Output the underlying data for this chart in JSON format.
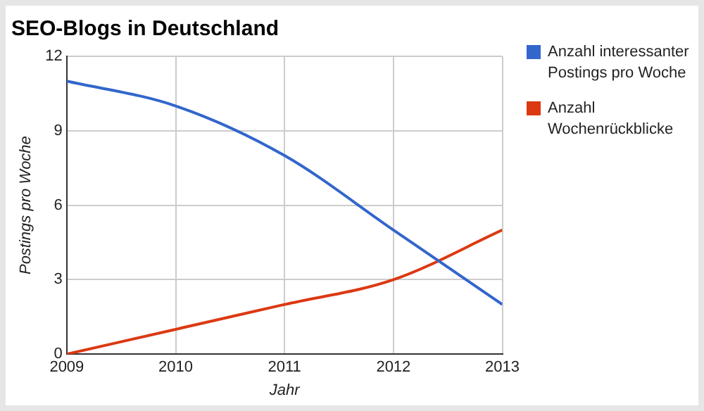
{
  "chart_data": {
    "type": "line",
    "title": "SEO-Blogs in Deutschland",
    "xlabel": "Jahr",
    "ylabel": "Postings pro Woche",
    "x": [
      2009,
      2010,
      2011,
      2012,
      2013
    ],
    "series": [
      {
        "name": "Anzahl interessanter Postings pro Woche",
        "color": "#3366cc",
        "values": [
          11,
          10,
          8,
          5,
          2
        ]
      },
      {
        "name": "Anzahl Wochenrückblicke",
        "color": "#dc3912",
        "values": [
          0,
          1,
          2,
          3,
          5
        ]
      }
    ],
    "xlim": [
      2009,
      2013
    ],
    "xticks": [
      2009,
      2010,
      2011,
      2012,
      2013
    ],
    "ylim": [
      0,
      12
    ],
    "yticks": [
      0,
      3,
      6,
      9,
      12
    ],
    "grid": true,
    "legend": "right",
    "marker": "none",
    "line_style": "solid"
  }
}
